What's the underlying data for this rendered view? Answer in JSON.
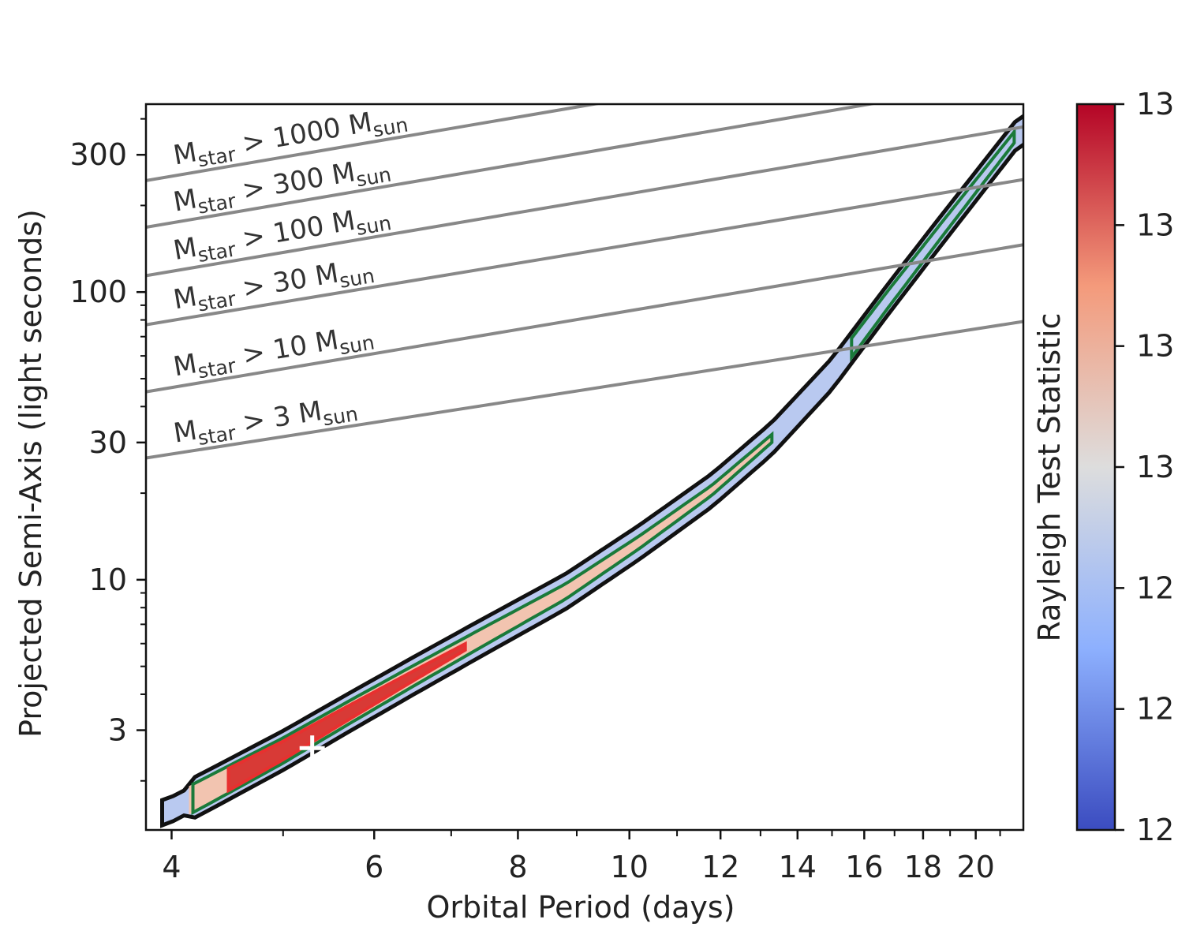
{
  "chart_data": {
    "type": "heatmap",
    "xlabel": "Orbital Period (days)",
    "ylabel": "Projected Semi-Axis (light seconds)",
    "x_scale": "log",
    "y_scale": "log",
    "xlim": [
      3.8,
      22
    ],
    "ylim": [
      1.35,
      450
    ],
    "x_ticks": [
      4,
      6,
      8,
      10,
      12,
      14,
      16,
      18,
      20
    ],
    "x_tick_labels": [
      "4",
      "6",
      "8",
      "10",
      "12",
      "14",
      "16",
      "18",
      "20"
    ],
    "y_ticks": [
      3,
      10,
      30,
      100,
      300
    ],
    "y_tick_labels": [
      "3",
      "10",
      "30",
      "100",
      "300"
    ],
    "colorbar": {
      "label": "Rayleigh Test Statistic",
      "cmap": "coolwarm",
      "tick_labels": [
        "12",
        "12",
        "12",
        "13",
        "13",
        "13",
        "13"
      ]
    },
    "ridge": {
      "period_days": [
        3.95,
        4.3,
        5.0,
        5.7,
        6.5,
        7.5,
        8.8,
        10.2,
        11.8,
        13.3,
        15.0,
        16.8,
        18.8,
        21.9
      ],
      "semi_axis_lts": [
        1.55,
        1.85,
        2.55,
        3.45,
        4.65,
        6.4,
        9.1,
        13.5,
        20.5,
        31,
        52,
        95,
        170,
        370
      ]
    },
    "best_fit": {
      "period_days": 5.3,
      "semi_axis_lts": 2.6,
      "marker": "+"
    },
    "mass_limits": [
      {
        "label_main": "M",
        "label_sub": "star",
        "label_mid": " > 3 M",
        "label_unit": "sun",
        "a_at_3_8": 26.5,
        "a_at_22": 79
      },
      {
        "label_main": "M",
        "label_sub": "star",
        "label_mid": " > 10 M",
        "label_unit": "sun",
        "a_at_3_8": 45,
        "a_at_22": 146
      },
      {
        "label_main": "M",
        "label_sub": "star",
        "label_mid": " > 30 M",
        "label_unit": "sun",
        "a_at_3_8": 77,
        "a_at_22": 246
      },
      {
        "label_main": "M",
        "label_sub": "star",
        "label_mid": " > 100 M",
        "label_unit": "sun",
        "a_at_3_8": 114,
        "a_at_22": 375
      },
      {
        "label_main": "M",
        "label_sub": "star",
        "label_mid": " > 300 M",
        "label_unit": "sun",
        "a_at_3_8": 168,
        "a_at_22": 555
      },
      {
        "label_main": "M",
        "label_sub": "star",
        "label_mid": " > 1000 M",
        "label_unit": "sun",
        "a_at_3_8": 244,
        "a_at_22": 810
      }
    ],
    "contour_colors": {
      "outer": "#111111",
      "green": "#1a7a3a",
      "red": "#e8302f",
      "mass_line": "#888888",
      "marker": "#ffffff"
    }
  }
}
